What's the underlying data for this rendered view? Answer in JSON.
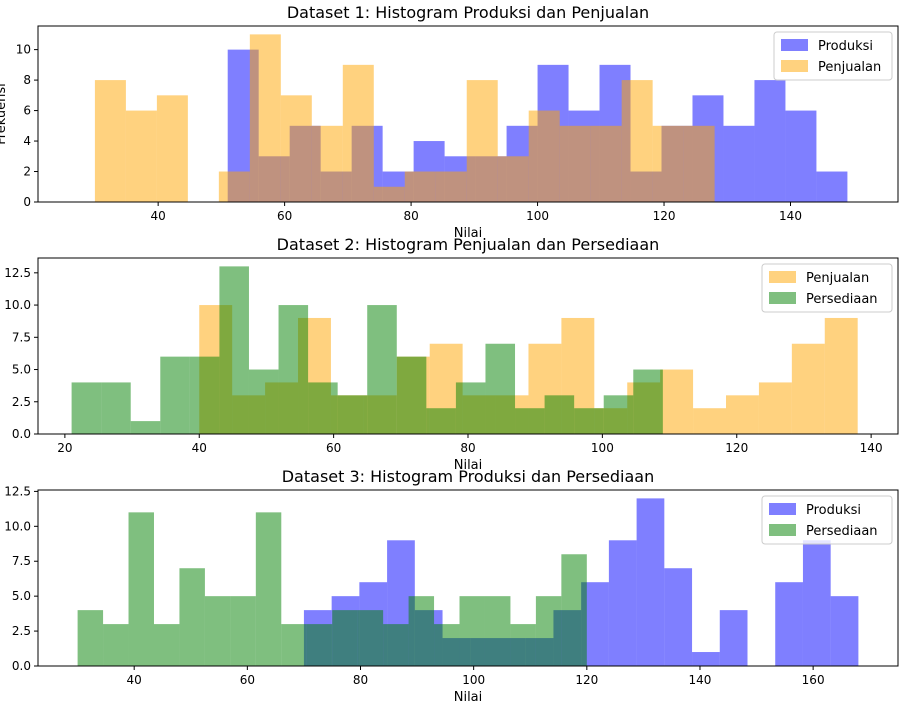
{
  "chart_data": [
    {
      "type": "bar",
      "title": "Dataset 1: Histogram Produksi dan Penjualan",
      "xlabel": "Nilai",
      "ylabel": "Frekuensi",
      "xlim": [
        21,
        157
      ],
      "ylim": [
        0,
        11.55
      ],
      "xticks": [
        40,
        60,
        80,
        100,
        120,
        140
      ],
      "yticks": [
        0,
        2,
        4,
        6,
        8,
        10
      ],
      "legend_position": "top-right",
      "series": [
        {
          "name": "Produksi",
          "color": "#0000ff",
          "alpha": 0.5,
          "bin_edges": [
            51.0,
            55.9,
            60.8,
            65.7,
            70.6,
            75.5,
            80.4,
            85.3,
            90.2,
            95.1,
            100.0,
            104.9,
            109.8,
            114.7,
            119.6,
            124.5,
            129.4,
            134.3,
            139.2,
            144.1,
            149.0
          ],
          "counts": [
            10,
            3,
            5,
            2,
            5,
            2,
            4,
            3,
            3,
            5,
            9,
            6,
            9,
            2,
            5,
            7,
            5,
            8,
            6,
            2
          ]
        },
        {
          "name": "Penjualan",
          "color": "#ffa500",
          "alpha": 0.5,
          "bin_edges": [
            30.0,
            34.9,
            39.8,
            44.7,
            49.6,
            54.5,
            59.4,
            64.3,
            69.2,
            74.1,
            79.0,
            83.9,
            88.8,
            93.7,
            98.6,
            103.5,
            108.4,
            113.3,
            118.2,
            123.1,
            128.0
          ],
          "counts": [
            8,
            6,
            7,
            0,
            2,
            11,
            7,
            5,
            9,
            1,
            2,
            2,
            8,
            3,
            6,
            5,
            5,
            8,
            5,
            5
          ]
        }
      ]
    },
    {
      "type": "bar",
      "title": "Dataset 2: Histogram Penjualan dan Persediaan",
      "xlabel": "Nilai",
      "ylabel": "",
      "xlim": [
        16,
        144
      ],
      "ylim": [
        0,
        13.65
      ],
      "xticks": [
        20,
        40,
        60,
        80,
        100,
        120,
        140
      ],
      "yticks": [
        0,
        2.5,
        5,
        7.5,
        10,
        12.5
      ],
      "ytick_labels": [
        "0.0",
        "2.5",
        "5.0",
        "7.5",
        "10.0",
        "12.5"
      ],
      "legend_position": "top-right",
      "series": [
        {
          "name": "Penjualan",
          "color": "#ffa500",
          "alpha": 0.5,
          "bin_edges": [
            40.0,
            44.9,
            49.8,
            54.7,
            59.6,
            64.5,
            69.4,
            74.3,
            79.2,
            84.1,
            89.0,
            93.9,
            98.8,
            103.7,
            108.6,
            113.5,
            118.4,
            123.3,
            128.2,
            133.1,
            138.0
          ],
          "counts": [
            10,
            3,
            4,
            9,
            3,
            3,
            6,
            7,
            3,
            3,
            7,
            9,
            2,
            4,
            5,
            2,
            3,
            4,
            7,
            9
          ]
        },
        {
          "name": "Persediaan",
          "color": "#008000",
          "alpha": 0.5,
          "bin_edges": [
            21.0,
            25.4,
            29.8,
            34.2,
            38.6,
            43.0,
            47.4,
            51.8,
            56.2,
            60.6,
            65.0,
            69.4,
            73.8,
            78.2,
            82.6,
            87.0,
            91.4,
            95.8,
            100.2,
            104.6,
            109.0
          ],
          "counts": [
            4,
            4,
            1,
            6,
            6,
            13,
            5,
            10,
            4,
            3,
            10,
            6,
            2,
            4,
            7,
            2,
            3,
            2,
            3,
            5
          ]
        }
      ]
    },
    {
      "type": "bar",
      "title": "Dataset 3: Histogram Produksi dan Persediaan",
      "xlabel": "Nilai",
      "ylabel": "",
      "xlim": [
        23,
        175
      ],
      "ylim": [
        0,
        12.6
      ],
      "xticks": [
        40,
        60,
        80,
        100,
        120,
        140,
        160
      ],
      "yticks": [
        0,
        2.5,
        5,
        7.5,
        10,
        12.5
      ],
      "ytick_labels": [
        "0.0",
        "2.5",
        "5.0",
        "7.5",
        "10.0",
        "12.5"
      ],
      "legend_position": "top-right",
      "series": [
        {
          "name": "Produksi",
          "color": "#0000ff",
          "alpha": 0.5,
          "bin_edges": [
            70.0,
            74.9,
            79.8,
            84.7,
            89.6,
            94.5,
            99.4,
            104.3,
            109.2,
            114.1,
            119.0,
            123.9,
            128.8,
            133.7,
            138.6,
            143.5,
            148.4,
            153.3,
            158.2,
            163.1,
            168.0
          ],
          "counts": [
            4,
            5,
            6,
            9,
            4,
            2,
            2,
            2,
            2,
            4,
            6,
            9,
            12,
            7,
            1,
            4,
            0,
            6,
            9,
            5
          ]
        },
        {
          "name": "Persediaan",
          "color": "#008000",
          "alpha": 0.5,
          "bin_edges": [
            30.0,
            34.5,
            39.0,
            43.5,
            48.0,
            52.5,
            57.0,
            61.5,
            66.0,
            70.5,
            75.0,
            79.5,
            84.0,
            88.5,
            93.0,
            97.5,
            102.0,
            106.5,
            111.0,
            115.5,
            120.0
          ],
          "counts": [
            4,
            3,
            11,
            3,
            7,
            5,
            5,
            11,
            3,
            3,
            4,
            4,
            3,
            5,
            3,
            5,
            5,
            3,
            5,
            8
          ]
        }
      ]
    }
  ]
}
